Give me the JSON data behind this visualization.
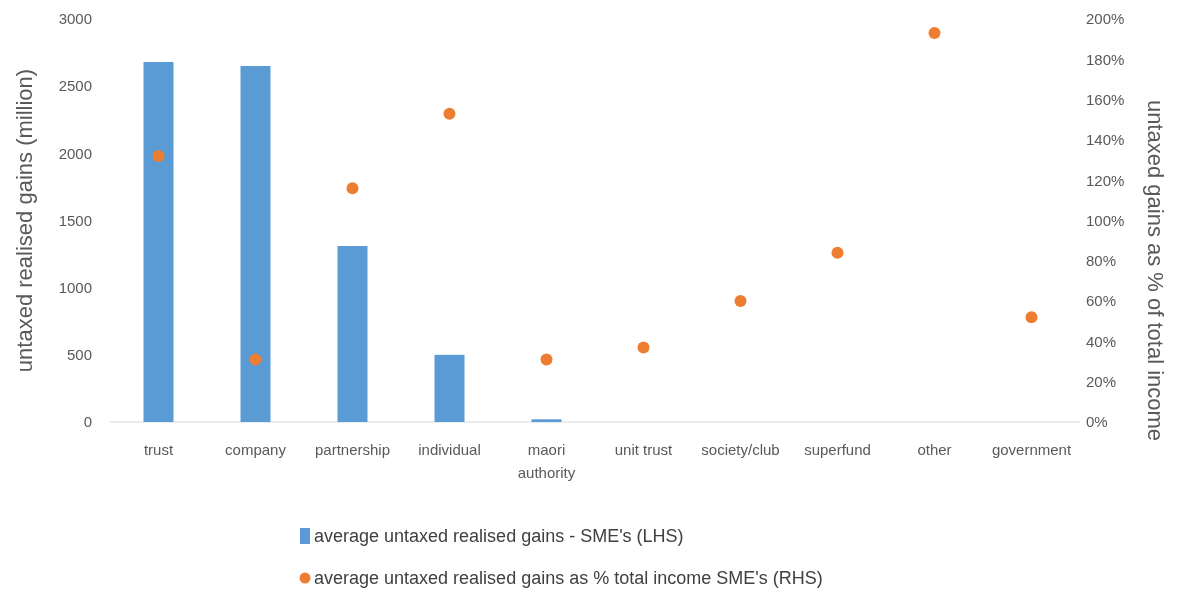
{
  "chart_data": {
    "type": "bar",
    "ylabel": "untaxed realised gains (million)",
    "y2label": "untaxed gains as % of total income",
    "categories": [
      "trust",
      "company",
      "partnership",
      "individual",
      "maori authority",
      "unit trust",
      "society/club",
      "superfund",
      "other",
      "government"
    ],
    "series": [
      {
        "name": "average untaxed realised gains - SME's (LHS)",
        "color": "#5b9bd5",
        "values": [
          2680,
          2650,
          1310,
          500,
          20,
          0,
          0,
          0,
          0,
          0
        ]
      },
      {
        "name": "average untaxed realised gains as % total income SME's (RHS)",
        "type": "scatter",
        "axis": "y2",
        "color": "#ed7d31",
        "values": [
          132,
          31,
          116,
          153,
          31,
          37,
          60,
          84,
          193,
          52
        ]
      }
    ],
    "ylim": [
      0,
      3000
    ],
    "yticks": [
      0,
      500,
      1000,
      1500,
      2000,
      2500,
      3000
    ],
    "y2lim": [
      0,
      200
    ],
    "y2ticks": [
      {
        "value": 0,
        "label": "0%"
      },
      {
        "value": 20,
        "label": "20%"
      },
      {
        "value": 40,
        "label": "40%"
      },
      {
        "value": 60,
        "label": "60%"
      },
      {
        "value": 80,
        "label": "80%"
      },
      {
        "value": 100,
        "label": "100%"
      },
      {
        "value": 120,
        "label": "120%"
      },
      {
        "value": 140,
        "label": "140%"
      },
      {
        "value": 160,
        "label": "160%"
      },
      {
        "value": 180,
        "label": "180%"
      },
      {
        "value": 200,
        "label": "200%"
      }
    ],
    "legend": "bottom",
    "marker": "circle",
    "grid": false
  }
}
